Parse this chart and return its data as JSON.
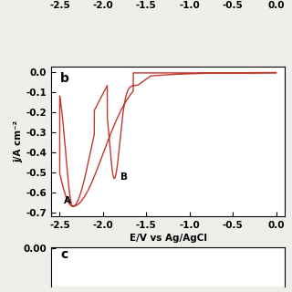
{
  "title_top_xlabel": "E/V vs Ag/AgCl",
  "xlabel": "E/V vs Ag/AgCl",
  "ylabel": "j/A cm⁻²",
  "xlim": [
    -2.6,
    0.1
  ],
  "ylim_b": [
    -0.72,
    0.03
  ],
  "xticks": [
    -2.5,
    -2.0,
    -1.5,
    -1.0,
    -0.5,
    0.0
  ],
  "yticks_b": [
    0.0,
    -0.1,
    -0.2,
    -0.3,
    -0.4,
    -0.5,
    -0.6,
    -0.7
  ],
  "label_b": "b",
  "label_c": "c",
  "label_A": "A",
  "label_B": "B",
  "line_color": "#c0392b",
  "bg_color": "#f0eeea",
  "panel_bg": "white"
}
